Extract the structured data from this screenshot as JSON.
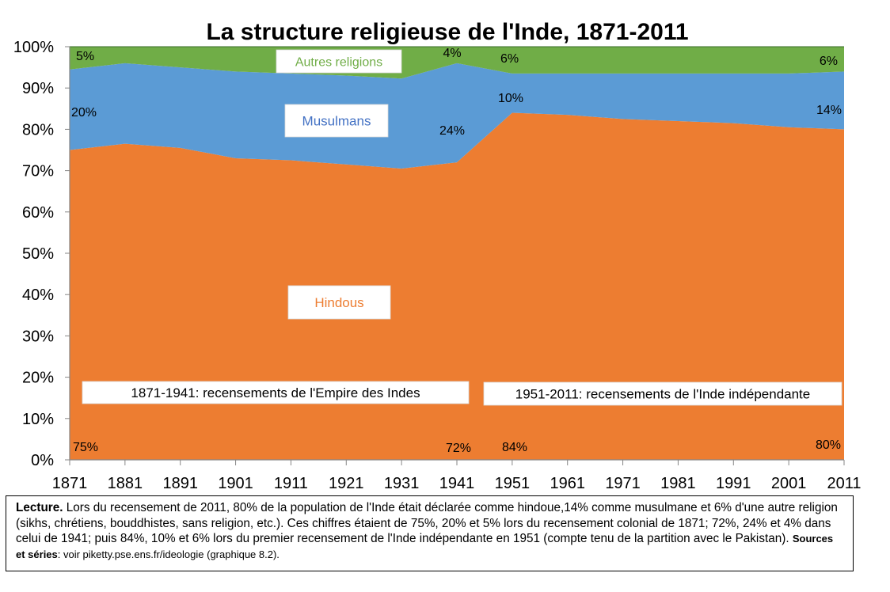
{
  "chart_data": {
    "type": "area",
    "stacked": true,
    "title": "La structure religieuse de l'Inde, 1871-2011",
    "x": [
      "1871",
      "1881",
      "1891",
      "1901",
      "1911",
      "1921",
      "1931",
      "1941",
      "1951",
      "1961",
      "1971",
      "1981",
      "1991",
      "2001",
      "2011"
    ],
    "ylim": [
      0,
      100
    ],
    "yticks": [
      "0%",
      "10%",
      "20%",
      "30%",
      "40%",
      "50%",
      "60%",
      "70%",
      "80%",
      "90%",
      "100%"
    ],
    "grid": false,
    "series": [
      {
        "name": "Hindous",
        "color": "#ED7D31",
        "values": [
          75,
          76.5,
          75.5,
          73,
          72.5,
          71.5,
          70.5,
          72,
          84,
          83.5,
          82.5,
          82,
          81.5,
          80.5,
          80
        ]
      },
      {
        "name": "Musulmans",
        "color": "#5B9BD5",
        "values": [
          19.5,
          19.5,
          19.5,
          21,
          21,
          21.5,
          21.8,
          24,
          9.5,
          10,
          11,
          11.5,
          12,
          13,
          14
        ]
      },
      {
        "name": "Autres religions",
        "color": "#70AD47",
        "values": [
          5.5,
          4,
          5,
          6,
          6.5,
          7,
          7.7,
          4,
          6.5,
          6.5,
          6.5,
          6.5,
          6.5,
          6.5,
          6
        ]
      }
    ],
    "series_labels": [
      {
        "text": "Hindous",
        "text_color": "#ED7D31"
      },
      {
        "text": "Musulmans",
        "text_color": "#4472C4"
      },
      {
        "text": "Autres religions",
        "text_color": "#70AD47"
      }
    ],
    "period_labels": [
      "1871-1941: recensements de l'Empire des Indes",
      "1951-2011: recensements de l'Inde indépendante"
    ],
    "data_labels": [
      {
        "text": "5%"
      },
      {
        "text": "20%"
      },
      {
        "text": "75%"
      },
      {
        "text": "4%"
      },
      {
        "text": "24%"
      },
      {
        "text": "72%"
      },
      {
        "text": "6%"
      },
      {
        "text": "10%"
      },
      {
        "text": "84%"
      },
      {
        "text": "6%"
      },
      {
        "text": "14%"
      },
      {
        "text": "80%"
      }
    ]
  },
  "note": {
    "label": "Lecture.",
    "text": " Lors du recensement de 2011, 80% de la population de l'Inde était déclarée comme hindoue,14% comme musulmane et 6% d'une autre religion (sikhs, chrétiens, bouddhistes, sans religion, etc.). Ces chiffres étaient de 75%, 20% et 5% lors du recensement colonial de 1871; 72%, 24% et 4% dans celui de 1941; puis 84%, 10% et 6% lors du premier recensement de l'Inde indépendante en 1951 (compte tenu de la partition avec le Pakistan). ",
    "sources_label": "Sources et séries",
    "sources_text": ": voir piketty.pse.ens.fr/ideologie (graphique 8.2)."
  }
}
